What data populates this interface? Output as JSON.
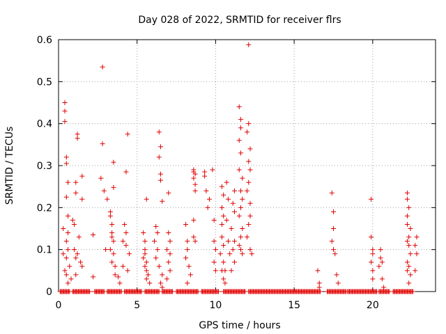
{
  "chart_data": {
    "type": "scatter",
    "title": "Day 028 of 2022, SRMTID for receiver flrs",
    "xlabel": "GPS time / hours",
    "ylabel": "SRMTID / TECUs",
    "xlim": [
      0,
      24
    ],
    "ylim": [
      0,
      0.6
    ],
    "xticks": [
      0,
      5,
      10,
      15,
      20
    ],
    "xtick_labels": [
      "0",
      "5",
      "10",
      "15",
      "20"
    ],
    "yticks": [
      0,
      0.1,
      0.2,
      0.3,
      0.4,
      0.5,
      0.6
    ],
    "ytick_labels": [
      "0",
      "0.1",
      "0.2",
      "0.3",
      "0.4",
      "0.5",
      "0.6"
    ],
    "grid": true,
    "marker": "+",
    "series": [
      {
        "name": "SRMTID",
        "color": "#e00000",
        "points": [
          [
            0.4,
            0.45
          ],
          [
            0.4,
            0.43
          ],
          [
            0.4,
            0.405
          ],
          [
            0.5,
            0.32
          ],
          [
            0.5,
            0.305
          ],
          [
            0.6,
            0.26
          ],
          [
            0.5,
            0.225
          ],
          [
            0.6,
            0.18
          ],
          [
            0.3,
            0.15
          ],
          [
            0.6,
            0.14
          ],
          [
            0.5,
            0.12
          ],
          [
            0.6,
            0.1
          ],
          [
            0.3,
            0.09
          ],
          [
            0.5,
            0.08
          ],
          [
            0.7,
            0.06
          ],
          [
            0.4,
            0.05
          ],
          [
            0.5,
            0.04
          ],
          [
            0.6,
            0.02
          ],
          [
            0.8,
            0.03
          ],
          [
            0.9,
            0.17
          ],
          [
            1.1,
            0.26
          ],
          [
            1.1,
            0.235
          ],
          [
            1.2,
            0.375
          ],
          [
            1.2,
            0.365
          ],
          [
            1.5,
            0.275
          ],
          [
            1.5,
            0.22
          ],
          [
            1.0,
            0.16
          ],
          [
            1.3,
            0.13
          ],
          [
            1.0,
            0.1
          ],
          [
            1.2,
            0.09
          ],
          [
            1.1,
            0.08
          ],
          [
            1.4,
            0.07
          ],
          [
            1.5,
            0.06
          ],
          [
            1.1,
            0.04
          ],
          [
            2.2,
            0.135
          ],
          [
            2.2,
            0.035
          ],
          [
            2.7,
            0.27
          ],
          [
            2.8,
            0.535
          ],
          [
            2.8,
            0.352
          ],
          [
            2.9,
            0.24
          ],
          [
            3.0,
            0.1
          ],
          [
            3.1,
            0.22
          ],
          [
            3.3,
            0.19
          ],
          [
            3.3,
            0.18
          ],
          [
            3.4,
            0.16
          ],
          [
            3.4,
            0.14
          ],
          [
            3.4,
            0.13
          ],
          [
            3.5,
            0.12
          ],
          [
            3.3,
            0.1
          ],
          [
            3.5,
            0.09
          ],
          [
            3.4,
            0.07
          ],
          [
            3.6,
            0.06
          ],
          [
            3.6,
            0.04
          ],
          [
            3.5,
            0.308
          ],
          [
            3.5,
            0.248
          ],
          [
            3.8,
            0.035
          ],
          [
            3.9,
            0.02
          ],
          [
            4.2,
            0.16
          ],
          [
            4.3,
            0.14
          ],
          [
            4.1,
            0.12
          ],
          [
            4.3,
            0.11
          ],
          [
            4.3,
            0.285
          ],
          [
            4.4,
            0.375
          ],
          [
            4.1,
            0.06
          ],
          [
            4.4,
            0.05
          ],
          [
            4.5,
            0.09
          ],
          [
            5.4,
            0.14
          ],
          [
            5.5,
            0.12
          ],
          [
            5.5,
            0.1
          ],
          [
            5.5,
            0.09
          ],
          [
            5.4,
            0.08
          ],
          [
            5.6,
            0.07
          ],
          [
            5.5,
            0.06
          ],
          [
            5.6,
            0.05
          ],
          [
            5.7,
            0.04
          ],
          [
            5.6,
            0.03
          ],
          [
            5.8,
            0.02
          ],
          [
            5.6,
            0.22
          ],
          [
            6.2,
            0.155
          ],
          [
            6.3,
            0.14
          ],
          [
            6.1,
            0.12
          ],
          [
            6.3,
            0.1
          ],
          [
            6.2,
            0.08
          ],
          [
            6.4,
            0.38
          ],
          [
            6.5,
            0.345
          ],
          [
            6.4,
            0.32
          ],
          [
            6.5,
            0.28
          ],
          [
            6.5,
            0.265
          ],
          [
            6.6,
            0.215
          ],
          [
            6.4,
            0.06
          ],
          [
            6.6,
            0.04
          ],
          [
            6.5,
            0.02
          ],
          [
            6.6,
            0.01
          ],
          [
            7.0,
            0.235
          ],
          [
            7.0,
            0.14
          ],
          [
            7.1,
            0.12
          ],
          [
            6.9,
            0.1
          ],
          [
            7.1,
            0.09
          ],
          [
            7.0,
            0.07
          ],
          [
            7.1,
            0.05
          ],
          [
            6.9,
            0.03
          ],
          [
            8.1,
            0.16
          ],
          [
            8.2,
            0.12
          ],
          [
            8.2,
            0.1
          ],
          [
            8.1,
            0.08
          ],
          [
            8.3,
            0.06
          ],
          [
            8.4,
            0.04
          ],
          [
            8.2,
            0.02
          ],
          [
            8.6,
            0.29
          ],
          [
            8.6,
            0.285
          ],
          [
            8.7,
            0.28
          ],
          [
            8.6,
            0.27
          ],
          [
            8.7,
            0.255
          ],
          [
            8.7,
            0.24
          ],
          [
            8.6,
            0.13
          ],
          [
            8.7,
            0.12
          ],
          [
            8.6,
            0.17
          ],
          [
            9.3,
            0.285
          ],
          [
            9.4,
            0.24
          ],
          [
            9.6,
            0.22
          ],
          [
            9.5,
            0.2
          ],
          [
            9.3,
            0.275
          ],
          [
            9.9,
            0.17
          ],
          [
            9.9,
            0.12
          ],
          [
            10.0,
            0.1
          ],
          [
            9.9,
            0.07
          ],
          [
            10.0,
            0.05
          ],
          [
            9.8,
            0.29
          ],
          [
            10.4,
            0.25
          ],
          [
            10.5,
            0.23
          ],
          [
            10.4,
            0.2
          ],
          [
            10.5,
            0.18
          ],
          [
            10.4,
            0.16
          ],
          [
            10.4,
            0.13
          ],
          [
            10.5,
            0.11
          ],
          [
            10.3,
            0.09
          ],
          [
            10.5,
            0.07
          ],
          [
            10.4,
            0.05
          ],
          [
            10.5,
            0.03
          ],
          [
            10.6,
            0.02
          ],
          [
            10.7,
            0.26
          ],
          [
            10.8,
            0.22
          ],
          [
            10.7,
            0.17
          ],
          [
            10.8,
            0.12
          ],
          [
            10.9,
            0.09
          ],
          [
            10.6,
            0.05
          ],
          [
            11.2,
            0.24
          ],
          [
            11.1,
            0.21
          ],
          [
            11.2,
            0.19
          ],
          [
            11.0,
            0.15
          ],
          [
            11.2,
            0.12
          ],
          [
            11.1,
            0.1
          ],
          [
            11.2,
            0.07
          ],
          [
            11.0,
            0.05
          ],
          [
            11.5,
            0.44
          ],
          [
            11.6,
            0.41
          ],
          [
            11.6,
            0.39
          ],
          [
            11.5,
            0.36
          ],
          [
            11.6,
            0.33
          ],
          [
            11.5,
            0.29
          ],
          [
            11.7,
            0.27
          ],
          [
            11.6,
            0.24
          ],
          [
            11.7,
            0.22
          ],
          [
            11.6,
            0.2
          ],
          [
            11.5,
            0.18
          ],
          [
            11.7,
            0.15
          ],
          [
            11.6,
            0.13
          ],
          [
            11.5,
            0.11
          ],
          [
            11.6,
            0.1
          ],
          [
            11.7,
            0.09
          ],
          [
            12.1,
            0.588
          ],
          [
            12.1,
            0.4
          ],
          [
            12.0,
            0.38
          ],
          [
            12.2,
            0.34
          ],
          [
            12.1,
            0.31
          ],
          [
            12.2,
            0.29
          ],
          [
            12.1,
            0.26
          ],
          [
            12.0,
            0.24
          ],
          [
            12.2,
            0.21
          ],
          [
            12.2,
            0.18
          ],
          [
            12.1,
            0.16
          ],
          [
            12.0,
            0.13
          ],
          [
            12.2,
            0.1
          ],
          [
            12.3,
            0.09
          ],
          [
            16.5,
            0.05
          ],
          [
            16.6,
            0.02
          ],
          [
            16.6,
            0.01
          ],
          [
            17.4,
            0.235
          ],
          [
            17.5,
            0.19
          ],
          [
            17.5,
            0.15
          ],
          [
            17.4,
            0.12
          ],
          [
            17.5,
            0.1
          ],
          [
            17.6,
            0.09
          ],
          [
            17.7,
            0.04
          ],
          [
            17.8,
            0.02
          ],
          [
            19.9,
            0.22
          ],
          [
            19.9,
            0.13
          ],
          [
            20.0,
            0.1
          ],
          [
            20.0,
            0.09
          ],
          [
            19.9,
            0.07
          ],
          [
            20.0,
            0.05
          ],
          [
            20.0,
            0.03
          ],
          [
            20.5,
            0.1
          ],
          [
            20.5,
            0.08
          ],
          [
            20.6,
            0.07
          ],
          [
            20.4,
            0.06
          ],
          [
            20.6,
            0.03
          ],
          [
            20.7,
            0.01
          ],
          [
            22.2,
            0.235
          ],
          [
            22.2,
            0.22
          ],
          [
            22.3,
            0.2
          ],
          [
            22.2,
            0.18
          ],
          [
            22.2,
            0.16
          ],
          [
            22.4,
            0.15
          ],
          [
            22.3,
            0.13
          ],
          [
            22.2,
            0.12
          ],
          [
            22.3,
            0.11
          ],
          [
            22.4,
            0.09
          ],
          [
            22.2,
            0.07
          ],
          [
            22.3,
            0.06
          ],
          [
            22.2,
            0.05
          ],
          [
            22.4,
            0.04
          ],
          [
            22.3,
            0.02
          ],
          [
            22.8,
            0.13
          ],
          [
            22.7,
            0.11
          ],
          [
            22.8,
            0.09
          ],
          [
            22.7,
            0.05
          ]
        ],
        "baseline_zero_runs": [
          [
            0.1,
            0.7
          ],
          [
            0.9,
            2.0
          ],
          [
            2.3,
            2.9
          ],
          [
            3.1,
            4.0
          ],
          [
            4.2,
            5.3
          ],
          [
            5.5,
            6.4
          ],
          [
            6.6,
            7.3
          ],
          [
            7.5,
            8.9
          ],
          [
            9.1,
            10.2
          ],
          [
            10.5,
            11.9
          ],
          [
            12.1,
            16.7
          ],
          [
            17.1,
            18.3
          ],
          [
            18.4,
            20.3
          ],
          [
            20.4,
            21.1
          ],
          [
            21.3,
            22.6
          ]
        ]
      }
    ]
  }
}
